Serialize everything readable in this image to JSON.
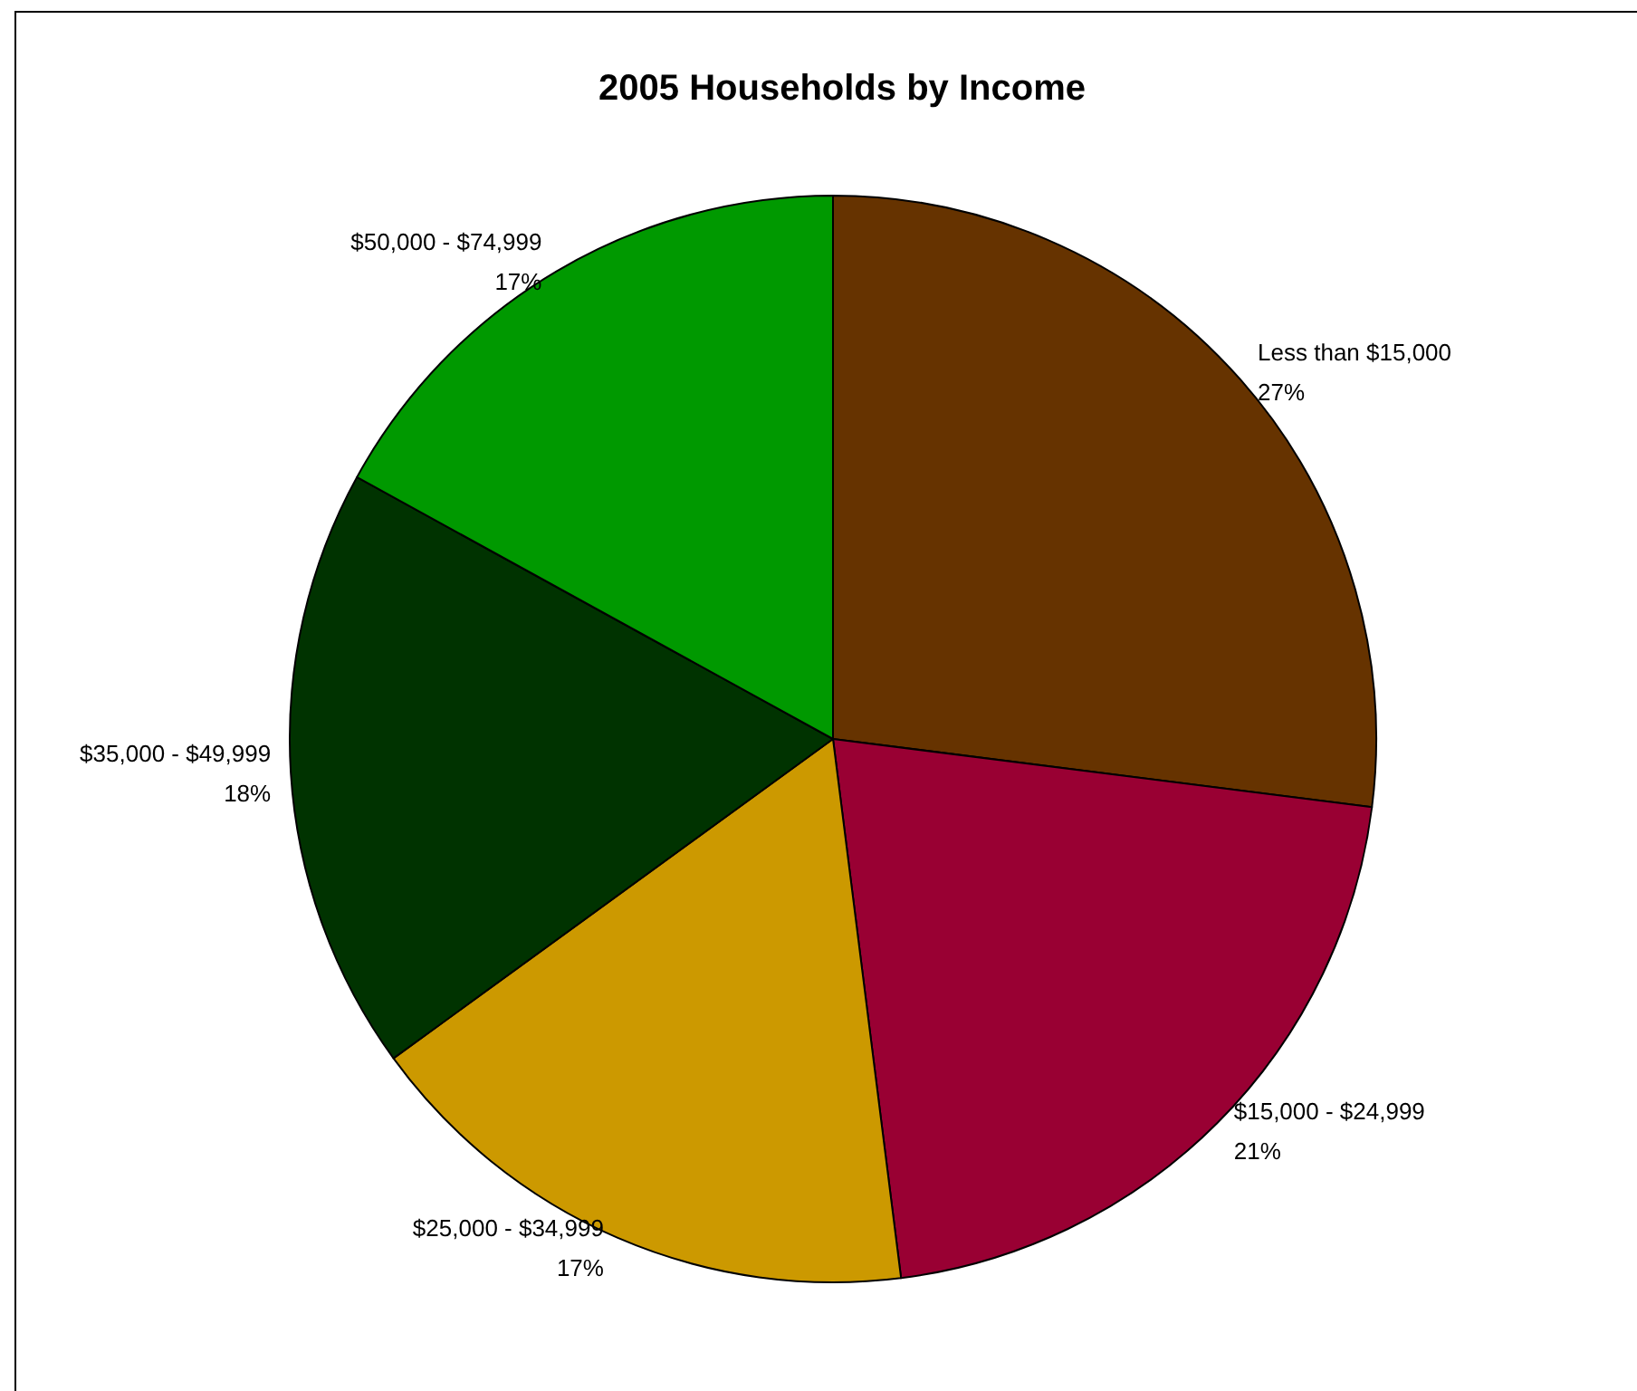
{
  "chart_data": {
    "type": "pie",
    "title": "2005 Households by Income",
    "categories": [
      "Less than $15,000",
      "$15,000 - $24,999",
      "$25,000 - $34,999",
      "$35,000 - $49,999",
      "$50,000 - $74,999"
    ],
    "values": [
      27,
      21,
      17,
      18,
      17
    ],
    "value_labels": [
      "27%",
      "21%",
      "17%",
      "18%",
      "17%"
    ],
    "colors": [
      "#663300",
      "#990033",
      "#cc9900",
      "#003300",
      "#009900"
    ],
    "legend": false
  }
}
